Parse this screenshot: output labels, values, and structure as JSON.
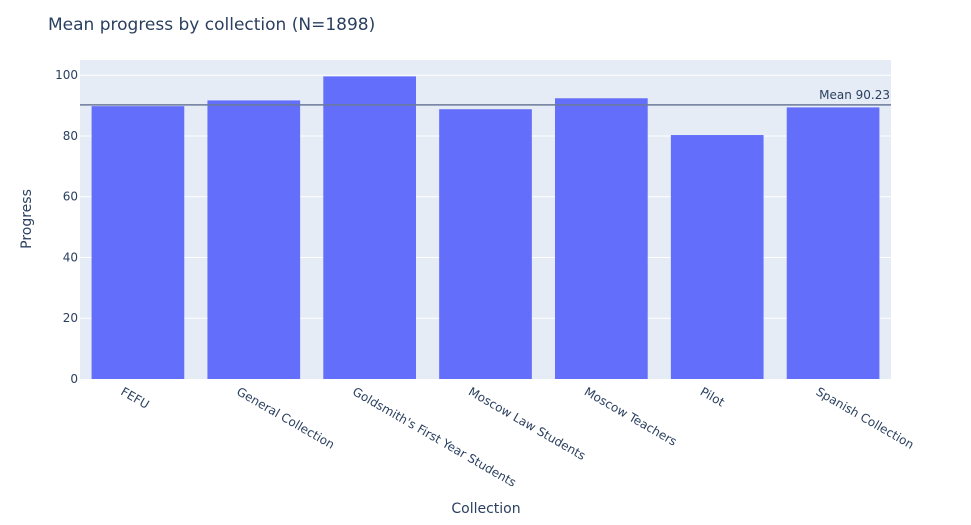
{
  "chart_data": {
    "type": "bar",
    "title": "Mean progress by collection (N=1898)",
    "xlabel": "Collection",
    "ylabel": "Progress",
    "categories": [
      "FEFU",
      "General Collection",
      "Goldsmith's First Year Students",
      "Moscow Law Students",
      "Moscow Teachers",
      "Pilot",
      "Spanish Collection"
    ],
    "values": [
      89.8,
      91.7,
      99.6,
      88.8,
      92.4,
      80.3,
      89.4
    ],
    "ylim": [
      0,
      105
    ],
    "yticks": [
      0,
      20,
      40,
      60,
      80,
      100
    ],
    "grid": true,
    "mean_line": {
      "value": 90.23,
      "label": "Mean 90.23"
    },
    "colors": {
      "bar": "#636efa",
      "plot_bg": "#e5ecf6",
      "grid": "#ffffff",
      "mean_line": "#6b7a99",
      "text": "#2a3f5f"
    }
  }
}
